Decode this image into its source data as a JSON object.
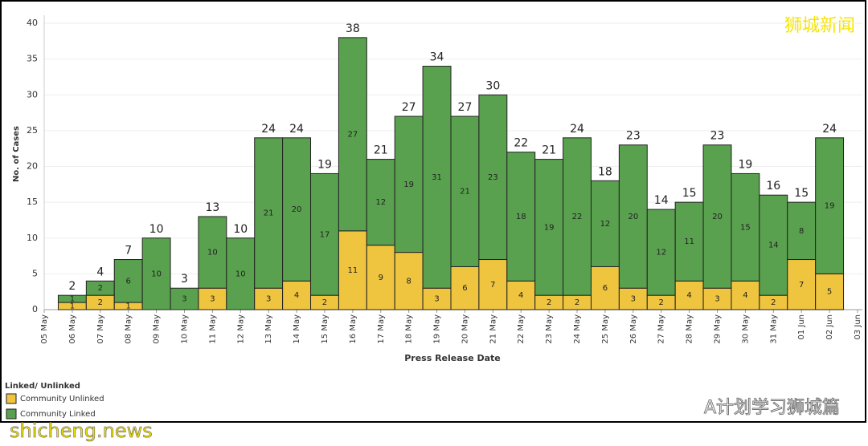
{
  "chart_data": {
    "type": "stacked_bar",
    "y_label": "No. of Cases",
    "x_label": "Press Release Date",
    "legend_title": "Linked/ Unlinked",
    "categories": [
      "05 May",
      "06 May",
      "07 May",
      "08 May",
      "09 May",
      "10 May",
      "11 May",
      "12 May",
      "13 May",
      "14 May",
      "15 May",
      "16 May",
      "17 May",
      "18 May",
      "19 May",
      "20 May",
      "21 May",
      "22 May",
      "23 May",
      "24 May",
      "25 May",
      "26 May",
      "27 May",
      "28 May",
      "29 May",
      "30 May",
      "31 May",
      "01 Jun",
      "02 Jun",
      "03 Jun"
    ],
    "series": [
      {
        "name": "Community Unlinked",
        "color": "#efc43f",
        "values": [
          null,
          1,
          2,
          1,
          0,
          0,
          3,
          0,
          3,
          4,
          2,
          11,
          9,
          8,
          3,
          6,
          7,
          4,
          2,
          2,
          6,
          3,
          2,
          4,
          3,
          4,
          2,
          7,
          5,
          null
        ]
      },
      {
        "name": "Community Linked",
        "color": "#59a14f",
        "values": [
          null,
          1,
          2,
          6,
          10,
          3,
          10,
          10,
          21,
          20,
          17,
          27,
          12,
          19,
          31,
          21,
          23,
          18,
          19,
          22,
          12,
          20,
          12,
          11,
          20,
          15,
          14,
          8,
          19,
          null
        ]
      }
    ],
    "totals": [
      null,
      2,
      4,
      7,
      10,
      3,
      13,
      10,
      24,
      24,
      19,
      38,
      21,
      27,
      34,
      27,
      30,
      22,
      21,
      24,
      18,
      23,
      14,
      15,
      23,
      19,
      16,
      15,
      24,
      null
    ],
    "ylim": [
      0,
      40
    ],
    "yticks": [
      0,
      5,
      10,
      15,
      20,
      25,
      30,
      35,
      40
    ],
    "grid": true
  },
  "watermarks": {
    "top_right": "狮城新闻",
    "bottom_right": "A计划学习狮城篇",
    "bottom_left": "shicheng.news"
  }
}
